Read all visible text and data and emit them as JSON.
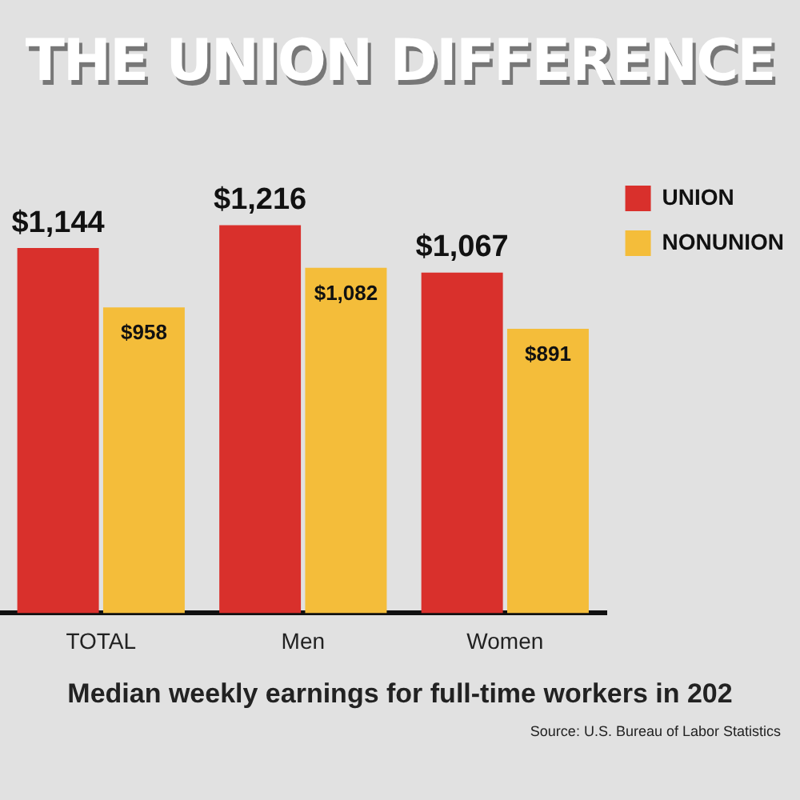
{
  "chart_data": {
    "type": "bar",
    "title": "THE UNION DIFFERENCE",
    "categories": [
      "TOTAL",
      "Men",
      "Women"
    ],
    "series": [
      {
        "name": "UNION",
        "color": "#d9302c",
        "values": [
          1144,
          1216,
          1067
        ],
        "value_labels": [
          "$1,144",
          "$1,216",
          "$1,067"
        ]
      },
      {
        "name": "NONUNION",
        "color": "#f4bd3a",
        "values": [
          958,
          1082,
          891
        ],
        "value_labels": [
          "$958",
          "$1,082",
          "$891"
        ]
      }
    ],
    "legend": "right",
    "grid": false,
    "tick_labels": "x",
    "annotations": [
      "Median weekly earnings for full-time workers in 202",
      "Source: U.S. Bureau of Labor Statistics"
    ]
  }
}
